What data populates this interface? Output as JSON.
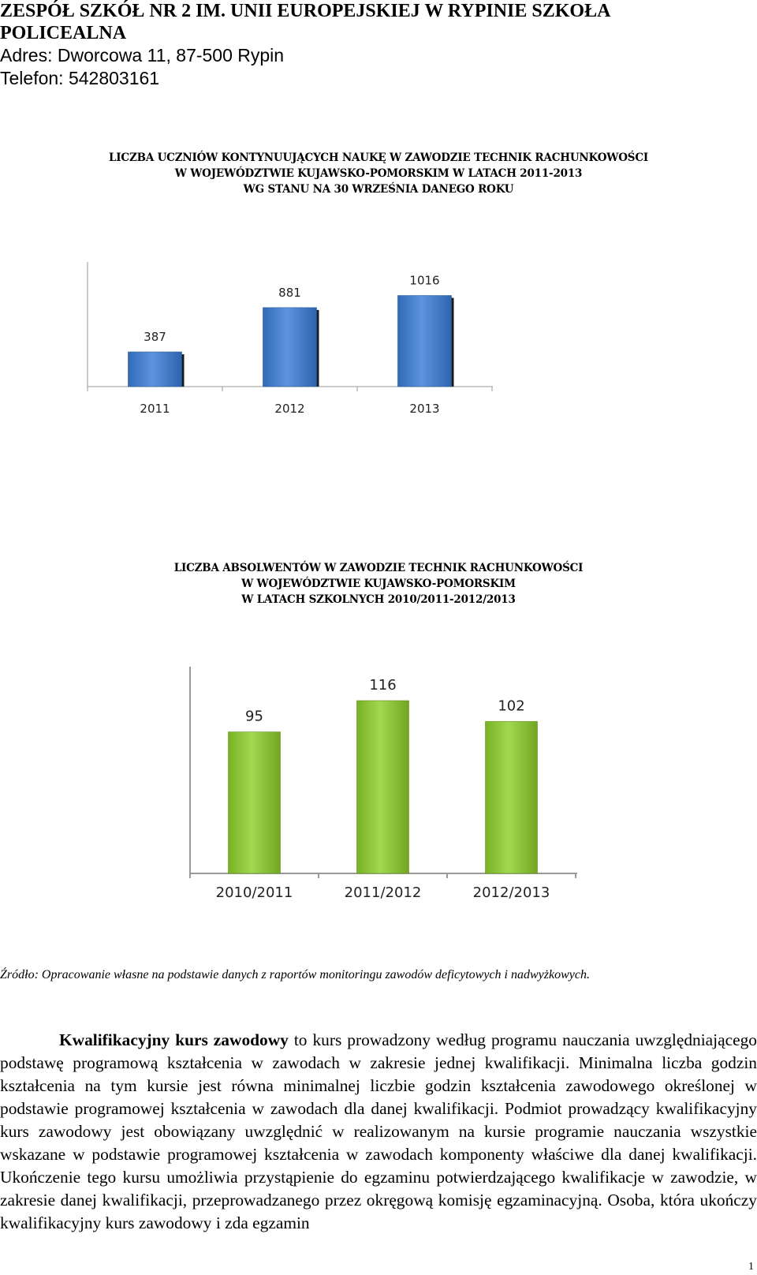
{
  "header": {
    "school_line1": "ZESPÓŁ SZKÓŁ NR 2 IM. UNII EUROPEJSKIEJ W RYPINIE SZKOŁA",
    "school_line2": "POLICEALNA",
    "address": "Adres: Dworcowa 11, 87-500 Rypin",
    "phone": "Telefon: 542803161"
  },
  "chart_data": [
    {
      "type": "bar",
      "title": "LICZBA UCZNIÓW KONTYNUUJĄCYCH NAUKĘ  W ZAWODZIE TECHNIK RACHUNKOWOŚCI W WOJEWÓDZTWIE KUJAWSKO-POMORSKIM W LATACH 2011-2013 WG STANU NA 30 WRZEŚNIA DANEGO ROKU",
      "title_lines": [
        "LICZBA UCZNIÓW KONTYNUUJĄCYCH NAUKĘ  W ZAWODZIE TECHNIK RACHUNKOWOŚCI",
        "W WOJEWÓDZTWIE KUJAWSKO-POMORSKIM W LATACH 2011-2013",
        "WG STANU NA 30 WRZEŚNIA DANEGO ROKU"
      ],
      "categories": [
        "2011",
        "2012",
        "2013"
      ],
      "values": [
        387,
        881,
        1016
      ],
      "data_labels": [
        "387",
        "881",
        "1016"
      ],
      "ylim": [
        0,
        1100
      ],
      "color": "#3a7dd8",
      "grid": false
    },
    {
      "type": "bar",
      "title": "LICZBA ABSOLWENTÓW  W ZAWODZIE TECHNIK RACHUNKOWOŚCI W WOJEWÓDZTWIE KUJAWSKO-POMORSKIM W LATACH SZKOLNYCH  2010/2011-2012/2013",
      "title_lines": [
        "LICZBA ABSOLWENTÓW  W ZAWODZIE TECHNIK RACHUNKOWOŚCI",
        "W WOJEWÓDZTWIE KUJAWSKO-POMORSKIM",
        "W LATACH SZKOLNYCH  2010/2011-2012/2013"
      ],
      "categories": [
        "2010/2011",
        "2011/2012",
        "2012/2013"
      ],
      "values": [
        95,
        116,
        102
      ],
      "data_labels": [
        "95",
        "116",
        "102"
      ],
      "ylim": [
        0,
        150
      ],
      "color": "#8ed02a",
      "grid": false
    }
  ],
  "source": "Źródło: Opracowanie własne na podstawie danych z raportów monitoringu zawodów deficytowych i nadwyżkowych.",
  "body": {
    "bold_lead": "Kwalifikacyjny kurs zawodowy",
    "text": " to kurs prowadzony według programu nauczania uwzględniającego podstawę programową kształcenia w zawodach w zakresie jednej kwalifikacji. Minimalna liczba godzin kształcenia na tym kursie jest równa minimalnej liczbie godzin kształcenia zawodowego określonej w podstawie programowej kształcenia w zawodach dla danej kwalifikacji. Podmiot prowadzący kwalifikacyjny kurs zawodowy jest obowiązany uwzględnić w realizowanym na kursie programie nauczania wszystkie wskazane w podstawie programowej kształcenia w zawodach komponenty właściwe dla danej kwalifikacji. Ukończenie tego kursu umożliwia przystąpienie do egzaminu potwierdzającego kwalifikacje w zawodzie, w zakresie danej kwalifikacji, przeprowadzanego przez okręgową komisję egzaminacyjną. Osoba, która ukończy kwalifikacyjny kurs zawodowy i zda egzamin"
  },
  "page_number": "1"
}
